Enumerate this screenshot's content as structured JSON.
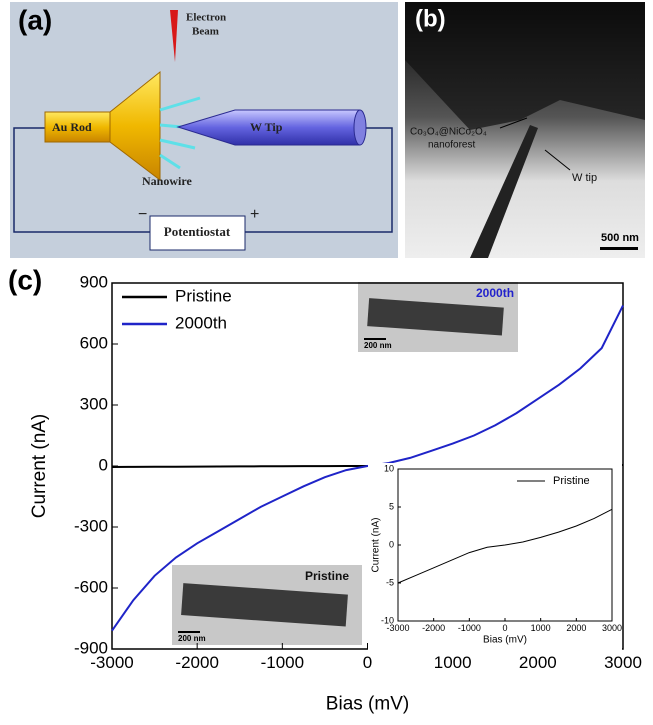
{
  "panel_a": {
    "label": "(a)",
    "beam_line1": "Electron",
    "beam_line2": "Beam",
    "rod": "Au Rod",
    "tip": "W Tip",
    "wire": "Nanowire",
    "box": "Potentiostat",
    "minus": "−",
    "plus": "+"
  },
  "panel_b": {
    "label": "(b)",
    "material": "Co₃O₄@NiCo₂O₄",
    "material2": "nanoforest",
    "tip": "W tip",
    "scale": "500 nm"
  },
  "panel_c": {
    "label": "(c)",
    "img_top_label": "2000th",
    "img_top_scale": "200 nm",
    "img_bottom_label": "Pristine",
    "img_bottom_scale": "200 nm"
  },
  "chart_data": [
    {
      "type": "line",
      "xlabel": "Bias (mV)",
      "ylabel": "Current (nA)",
      "x": [
        -3000,
        -2750,
        -2500,
        -2250,
        -2000,
        -1750,
        -1500,
        -1250,
        -1000,
        -750,
        -500,
        -250,
        0,
        250,
        500,
        750,
        1000,
        1250,
        1500,
        1750,
        2000,
        2250,
        2500,
        2750,
        3000
      ],
      "series": [
        {
          "name": "Pristine",
          "color": "#000000",
          "values": [
            -5,
            -4.5,
            -4,
            -3.5,
            -3,
            -2.5,
            -2,
            -1.5,
            -1,
            -0.6,
            -0.3,
            -0.1,
            0,
            0.2,
            0.4,
            0.7,
            1,
            1.3,
            1.7,
            2.1,
            2.5,
            3,
            3.5,
            4.1,
            4.7
          ]
        },
        {
          "name": "2000th",
          "color": "#1f24c8",
          "values": [
            -810,
            -660,
            -540,
            -450,
            -380,
            -320,
            -260,
            -200,
            -150,
            -100,
            -55,
            -20,
            0,
            15,
            40,
            75,
            110,
            150,
            200,
            260,
            330,
            400,
            480,
            580,
            790
          ]
        }
      ],
      "xlim": [
        -3000,
        3000
      ],
      "ylim": [
        -900,
        900
      ],
      "xticks": [
        -3000,
        -2000,
        -1000,
        0,
        1000,
        2000,
        3000
      ],
      "yticks": [
        -900,
        -600,
        -300,
        0,
        300,
        600,
        900
      ],
      "legend": "upper left"
    },
    {
      "type": "line",
      "xlabel": "Bias (mV)",
      "ylabel": "Current (nA)",
      "x": [
        -3000,
        -2500,
        -2000,
        -1500,
        -1000,
        -500,
        0,
        500,
        1000,
        1500,
        2000,
        2500,
        3000
      ],
      "series": [
        {
          "name": "Pristine",
          "color": "#000000",
          "values": [
            -5,
            -4,
            -3,
            -2,
            -1,
            -0.3,
            0,
            0.4,
            1,
            1.7,
            2.5,
            3.5,
            4.7
          ]
        }
      ],
      "xlim": [
        -3000,
        3000
      ],
      "ylim": [
        -10,
        10
      ],
      "xticks": [
        -3000,
        -2000,
        -1000,
        0,
        1000,
        2000,
        3000
      ],
      "yticks": [
        -10,
        -5,
        0,
        5,
        10
      ],
      "legend": "upper right"
    }
  ]
}
